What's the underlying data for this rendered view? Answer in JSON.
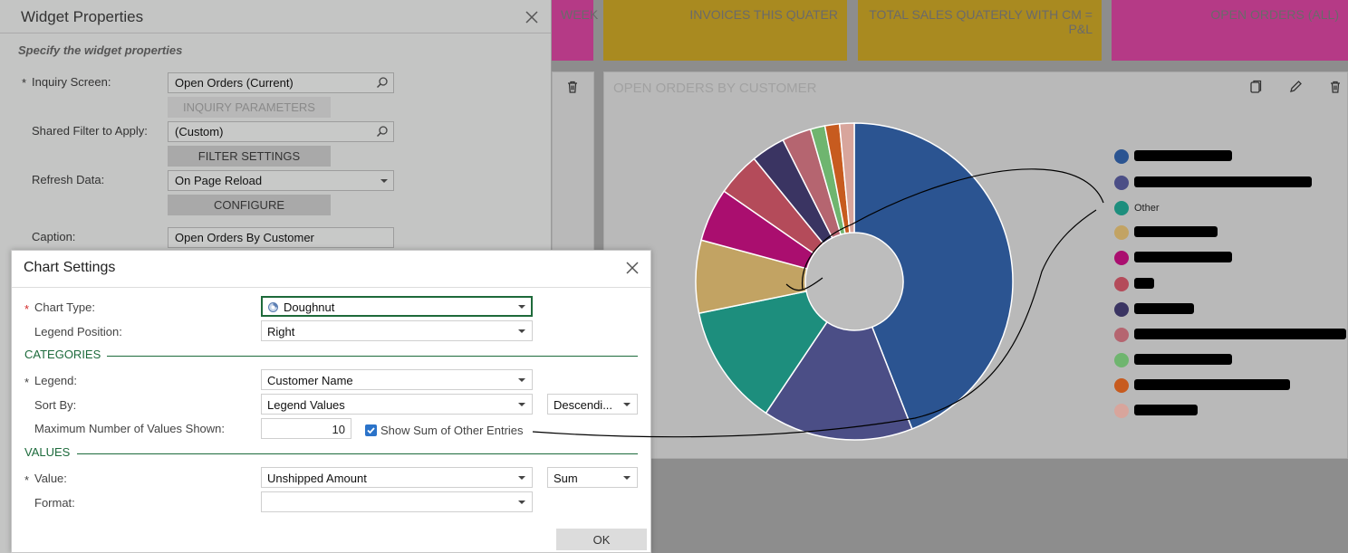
{
  "dashboard": {
    "tiles": {
      "week_partial": "WEEK",
      "invoices_this_quater": "INVOICES THIS QUATER",
      "total_sales_quaterly": "TOTAL SALES QUATERLY WITH CM = P&L",
      "open_orders_all": "OPEN ORDERS (ALL)"
    },
    "panel_title": "OPEN ORDERS BY CUSTOMER",
    "legend_other": "Other",
    "legend_colors": [
      "#2b5491",
      "#4b4e86",
      "#1d8e7d",
      "#c2a363",
      "#aa0e6f",
      "#b44b5a",
      "#3a3462",
      "#b56570",
      "#6fb56f",
      "#c75b1f",
      "#d8a59c"
    ]
  },
  "chart_data": {
    "type": "doughnut",
    "title": "",
    "legend_position": "right",
    "categories": [
      "",
      "",
      "Other",
      "",
      "",
      "",
      "",
      "",
      "",
      "",
      ""
    ],
    "values": [
      44.5,
      15.5,
      12.5,
      7.5,
      5.5,
      4.5,
      3.5,
      3.0,
      1.5,
      1.5,
      1.5
    ],
    "colors": [
      "#2b5491",
      "#4b4e86",
      "#1d8e7d",
      "#c2a363",
      "#aa0e6f",
      "#b44b5a",
      "#3a3462",
      "#b56570",
      "#6fb56f",
      "#c75b1f",
      "#d8a59c"
    ]
  },
  "widget_properties": {
    "title": "Widget Properties",
    "subtitle": "Specify the widget properties",
    "inquiry_screen_label": "Inquiry Screen:",
    "inquiry_screen_value": "Open Orders (Current)",
    "inquiry_parameters_button": "INQUIRY PARAMETERS",
    "shared_filter_label": "Shared Filter to Apply:",
    "shared_filter_value": "(Custom)",
    "filter_settings_button": "FILTER SETTINGS",
    "refresh_data_label": "Refresh Data:",
    "refresh_data_value": "On Page Reload",
    "configure_button": "CONFIGURE",
    "caption_label": "Caption:",
    "caption_value": "Open Orders By Customer",
    "required_mark": "*"
  },
  "chart_settings": {
    "title": "Chart Settings",
    "chart_type_label": "Chart Type:",
    "chart_type_value": "Doughnut",
    "legend_position_label": "Legend Position:",
    "legend_position_value": "Right",
    "categories_section": "CATEGORIES",
    "legend_label": "Legend:",
    "legend_value": "Customer Name",
    "sort_by_label": "Sort By:",
    "sort_by_value": "Legend Values",
    "sort_order_value": "Descendi...",
    "max_values_label": "Maximum Number of Values Shown:",
    "max_values_value": "10",
    "show_sum_label": "Show Sum of Other Entries",
    "show_sum_checked": true,
    "values_section": "VALUES",
    "value_label": "Value:",
    "value_value": "Unshipped Amount",
    "aggregate_value": "Sum",
    "format_label": "Format:",
    "format_value": "",
    "ok_button": "OK",
    "required_mark": "*"
  }
}
